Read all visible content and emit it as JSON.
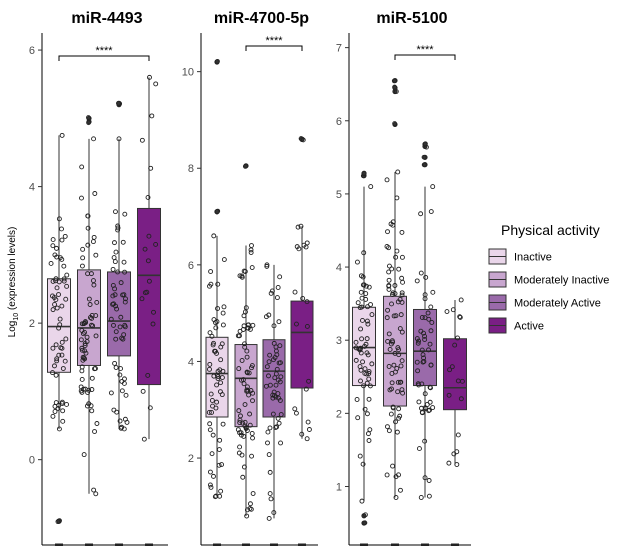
{
  "chart_data": {
    "type": "box",
    "ylabel_base": "Log",
    "ylabel_sub": "10",
    "ylabel_rest": " (expression levels)",
    "groups": [
      "Inactive",
      "Moderately Inactive",
      "Moderately Active",
      "Active"
    ],
    "colors": [
      "#ead6ea",
      "#c8a6cf",
      "#9a6aaa",
      "#7a1f85"
    ],
    "legend": {
      "title": "Physical activity",
      "placement": "right",
      "items": [
        "Inactive",
        "Moderately Inactive",
        "Moderately Active",
        "Active"
      ]
    },
    "panels": [
      {
        "title": "miR-4493",
        "ylim": [
          -1.25,
          6.25
        ],
        "yticks": [
          0,
          2,
          4,
          6
        ],
        "significance": "****",
        "boxes": [
          {
            "group": "Inactive",
            "q1": 1.28,
            "median": 1.95,
            "q3": 2.65,
            "whisker_low": 0.45,
            "whisker_high": 4.75,
            "n": 60,
            "outliers": [
              -0.9,
              -0.9
            ]
          },
          {
            "group": "Moderately Inactive",
            "q1": 1.38,
            "median": 1.93,
            "q3": 2.78,
            "whisker_low": -0.5,
            "whisker_high": 4.7,
            "n": 70,
            "outliers": [
              4.95,
              5.0
            ]
          },
          {
            "group": "Moderately Active",
            "q1": 1.52,
            "median": 2.03,
            "q3": 2.75,
            "whisker_low": 0.45,
            "whisker_high": 4.7,
            "n": 55,
            "outliers": [
              5.2,
              5.22
            ]
          },
          {
            "group": "Active",
            "q1": 1.1,
            "median": 2.7,
            "q3": 3.68,
            "whisker_low": 0.3,
            "whisker_high": 5.6,
            "n": 18,
            "outliers": []
          }
        ]
      },
      {
        "title": "miR-4700-5p",
        "ylim": [
          0.2,
          10.8
        ],
        "yticks": [
          2,
          4,
          6,
          8,
          10
        ],
        "significance": "****",
        "boxes": [
          {
            "group": "Inactive",
            "q1": 2.85,
            "median": 3.75,
            "q3": 4.5,
            "whisker_low": 1.2,
            "whisker_high": 6.6,
            "n": 60,
            "outliers": [
              7.1,
              7.1,
              10.2
            ]
          },
          {
            "group": "Moderately Inactive",
            "q1": 2.65,
            "median": 3.65,
            "q3": 4.35,
            "whisker_low": 0.8,
            "whisker_high": 6.4,
            "n": 75,
            "outliers": [
              8.05
            ]
          },
          {
            "group": "Moderately Active",
            "q1": 2.85,
            "median": 3.8,
            "q3": 4.45,
            "whisker_low": 0.75,
            "whisker_high": 6.0,
            "n": 55,
            "outliers": []
          },
          {
            "group": "Active",
            "q1": 3.45,
            "median": 4.6,
            "q3": 5.25,
            "whisker_low": 2.4,
            "whisker_high": 6.8,
            "n": 18,
            "outliers": [
              8.6,
              8.6
            ]
          }
        ]
      },
      {
        "title": "miR-5100",
        "ylim": [
          0.2,
          7.2
        ],
        "yticks": [
          1,
          2,
          3,
          4,
          5,
          6,
          7
        ],
        "significance": "****",
        "boxes": [
          {
            "group": "Inactive",
            "q1": 2.38,
            "median": 2.9,
            "q3": 3.45,
            "whisker_low": 0.8,
            "whisker_high": 5.1,
            "n": 60,
            "outliers": [
              5.25,
              5.28,
              0.5,
              0.6
            ]
          },
          {
            "group": "Moderately Inactive",
            "q1": 2.1,
            "median": 2.82,
            "q3": 3.6,
            "whisker_low": 0.85,
            "whisker_high": 5.3,
            "n": 80,
            "outliers": [
              5.95,
              6.4,
              6.45,
              6.55
            ]
          },
          {
            "group": "Moderately Active",
            "q1": 2.38,
            "median": 2.85,
            "q3": 3.42,
            "whisker_low": 0.85,
            "whisker_high": 5.1,
            "n": 55,
            "outliers": [
              5.4,
              5.5,
              5.65,
              5.68
            ]
          },
          {
            "group": "Active",
            "q1": 2.05,
            "median": 2.35,
            "q3": 3.02,
            "whisker_low": 1.3,
            "whisker_high": 3.55,
            "n": 16,
            "outliers": []
          }
        ]
      }
    ]
  }
}
